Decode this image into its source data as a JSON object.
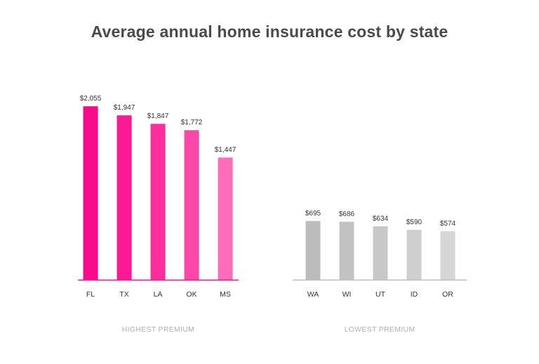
{
  "chart_data": {
    "type": "bar",
    "title": "Average annual home insurance cost by state",
    "panels": [
      {
        "label": "HIGHEST PREMIUM",
        "categories": [
          "FL",
          "TX",
          "LA",
          "OK",
          "MS"
        ],
        "values": [
          2055,
          1947,
          1847,
          1772,
          1447
        ],
        "value_labels": [
          "$2,055",
          "$1,947",
          "$1,847",
          "$1,772",
          "$1,447"
        ],
        "colors": [
          "#fa0a8a",
          "#fb1a93",
          "#fc2e9e",
          "#fd48aa",
          "#fe6db9"
        ],
        "axis_color": "#e8217f"
      },
      {
        "label": "LOWEST PREMIUM",
        "categories": [
          "WA",
          "WI",
          "UT",
          "ID",
          "OR"
        ],
        "values": [
          695,
          686,
          634,
          590,
          574
        ],
        "value_labels": [
          "$695",
          "$686",
          "$634",
          "$590",
          "$574"
        ],
        "colors": [
          "#bcbcbc",
          "#c2c2c2",
          "#c8c8c8",
          "#cfcfcf",
          "#d6d6d6"
        ],
        "axis_color": "#bdbdbd"
      }
    ],
    "xlabel": "",
    "ylabel": "",
    "grid": false
  }
}
